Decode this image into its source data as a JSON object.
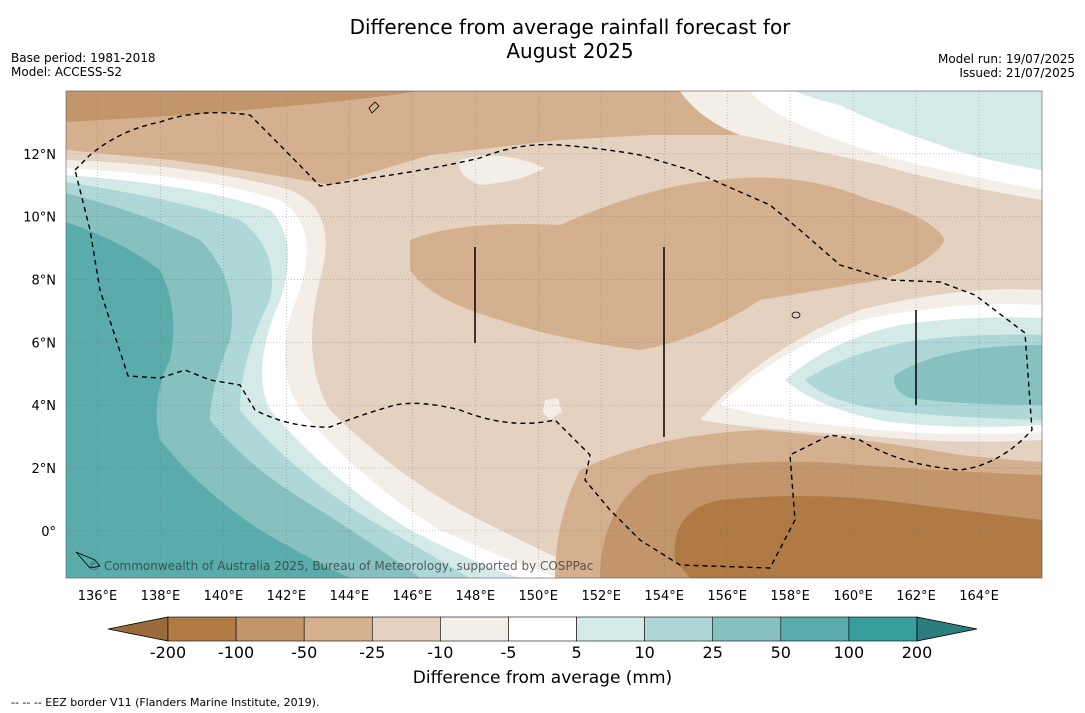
{
  "title_line1": "Difference from average rainfall forecast for",
  "title_line2": "August 2025",
  "left_meta": {
    "base_period": "Base period: 1981-2018",
    "model": "Model: ACCESS-S2"
  },
  "right_meta": {
    "model_run": "Model run: 19/07/2025",
    "issued": "Issued: 21/07/2025"
  },
  "map": {
    "lon_range": [
      135,
      166
    ],
    "lat_range": [
      -1.5,
      14
    ],
    "x_ticks": [
      "136°E",
      "138°E",
      "140°E",
      "142°E",
      "144°E",
      "146°E",
      "148°E",
      "150°E",
      "152°E",
      "154°E",
      "156°E",
      "158°E",
      "160°E",
      "162°E",
      "164°E"
    ],
    "y_ticks": [
      "12°N",
      "10°N",
      "8°N",
      "6°N",
      "4°N",
      "2°N",
      "0°"
    ],
    "copyright": "© Commonwealth of Australia 2025, Bureau of Meteorology, supported by COSPPac",
    "grid": true
  },
  "colorbar": {
    "labels": [
      "-200",
      "-100",
      "-50",
      "-25",
      "-10",
      "-5",
      "5",
      "10",
      "25",
      "50",
      "100",
      "200"
    ],
    "colors": [
      "#9c6b3c",
      "#b07a45",
      "#c2956b",
      "#d4b08f",
      "#e5d1c0",
      "#f3eee8",
      "#ffffff",
      "#d4eae8",
      "#aed8d7",
      "#86c1c0",
      "#5aacab",
      "#369e9b",
      "#2b7e7c"
    ],
    "title": "Difference from average (mm)"
  },
  "footer": "--  --  -- EEZ border V11 (Flanders Marine Institute, 2019)."
}
